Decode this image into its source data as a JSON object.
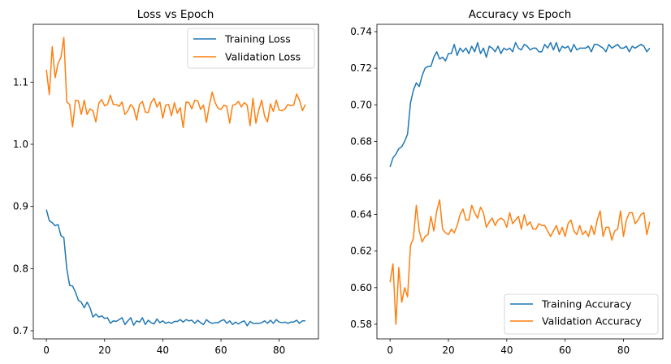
{
  "colors": {
    "training": "#1f77b4",
    "validation": "#ff7f0e"
  },
  "chart_data": [
    {
      "type": "line",
      "title": "Loss vs Epoch",
      "xlabel": "",
      "ylabel": "",
      "xlim": [
        -4.5,
        93.5
      ],
      "ylim": [
        0.687,
        1.193
      ],
      "xticks": [
        0,
        20,
        40,
        60,
        80
      ],
      "yticks": [
        0.7,
        0.8,
        0.9,
        1.0,
        1.1
      ],
      "yticks_labels": [
        "0.7",
        "0.8",
        "0.9",
        "1.0",
        "1.1"
      ],
      "grid": false,
      "legend_position": "upper right",
      "series": [
        {
          "name": "Training Loss",
          "color": "#1f77b4",
          "x_start": 0,
          "values": [
            0.895,
            0.877,
            0.874,
            0.869,
            0.871,
            0.853,
            0.85,
            0.8,
            0.773,
            0.772,
            0.762,
            0.749,
            0.746,
            0.737,
            0.746,
            0.737,
            0.722,
            0.727,
            0.722,
            0.724,
            0.72,
            0.721,
            0.712,
            0.716,
            0.715,
            0.718,
            0.721,
            0.71,
            0.716,
            0.721,
            0.709,
            0.716,
            0.714,
            0.721,
            0.71,
            0.717,
            0.713,
            0.711,
            0.719,
            0.713,
            0.716,
            0.712,
            0.714,
            0.712,
            0.715,
            0.715,
            0.718,
            0.714,
            0.718,
            0.716,
            0.717,
            0.712,
            0.717,
            0.713,
            0.71,
            0.718,
            0.714,
            0.712,
            0.713,
            0.713,
            0.716,
            0.718,
            0.712,
            0.716,
            0.71,
            0.714,
            0.711,
            0.714,
            0.716,
            0.708,
            0.715,
            0.712,
            0.712,
            0.712,
            0.713,
            0.716,
            0.712,
            0.717,
            0.712,
            0.718,
            0.714,
            0.713,
            0.714,
            0.712,
            0.714,
            0.714,
            0.717,
            0.712,
            0.716,
            0.716
          ]
        },
        {
          "name": "Validation Loss",
          "color": "#ff7f0e",
          "x_start": 0,
          "values": [
            1.12,
            1.08,
            1.157,
            1.107,
            1.13,
            1.14,
            1.172,
            1.068,
            1.064,
            1.028,
            1.071,
            1.07,
            1.048,
            1.071,
            1.048,
            1.057,
            1.054,
            1.036,
            1.066,
            1.072,
            1.062,
            1.064,
            1.079,
            1.064,
            1.064,
            1.061,
            1.068,
            1.048,
            1.054,
            1.064,
            1.058,
            1.039,
            1.064,
            1.069,
            1.052,
            1.051,
            1.067,
            1.074,
            1.06,
            1.068,
            1.042,
            1.063,
            1.064,
            1.046,
            1.067,
            1.05,
            1.059,
            1.027,
            1.068,
            1.067,
            1.057,
            1.071,
            1.07,
            1.056,
            1.063,
            1.035,
            1.063,
            1.084,
            1.067,
            1.058,
            1.056,
            1.063,
            1.061,
            1.034,
            1.063,
            1.064,
            1.069,
            1.06,
            1.067,
            1.063,
            1.03,
            1.074,
            1.034,
            1.055,
            1.071,
            1.045,
            1.036,
            1.065,
            1.053,
            1.071,
            1.055,
            1.054,
            1.057,
            1.064,
            1.062,
            1.063,
            1.081,
            1.071,
            1.054,
            1.064
          ]
        }
      ]
    },
    {
      "type": "line",
      "title": "Accuracy vs Epoch",
      "xlabel": "",
      "ylabel": "",
      "xlim": [
        -4.5,
        93.5
      ],
      "ylim": [
        0.572,
        0.744
      ],
      "xticks": [
        0,
        20,
        40,
        60,
        80
      ],
      "yticks": [
        0.58,
        0.6,
        0.62,
        0.64,
        0.66,
        0.68,
        0.7,
        0.72,
        0.74
      ],
      "yticks_labels": [
        "0.58",
        "0.60",
        "0.62",
        "0.64",
        "0.66",
        "0.68",
        "0.70",
        "0.72",
        "0.74"
      ],
      "grid": false,
      "legend_position": "lower right",
      "series": [
        {
          "name": "Training Accuracy",
          "color": "#1f77b4",
          "x_start": 0,
          "values": [
            0.666,
            0.671,
            0.673,
            0.676,
            0.677,
            0.68,
            0.684,
            0.701,
            0.708,
            0.712,
            0.71,
            0.716,
            0.72,
            0.721,
            0.721,
            0.726,
            0.729,
            0.725,
            0.726,
            0.724,
            0.728,
            0.728,
            0.733,
            0.727,
            0.731,
            0.729,
            0.731,
            0.728,
            0.732,
            0.729,
            0.734,
            0.728,
            0.731,
            0.726,
            0.732,
            0.731,
            0.729,
            0.732,
            0.728,
            0.731,
            0.73,
            0.731,
            0.729,
            0.734,
            0.731,
            0.73,
            0.733,
            0.732,
            0.73,
            0.731,
            0.731,
            0.729,
            0.729,
            0.733,
            0.731,
            0.734,
            0.73,
            0.734,
            0.729,
            0.732,
            0.731,
            0.732,
            0.729,
            0.733,
            0.73,
            0.731,
            0.731,
            0.731,
            0.732,
            0.729,
            0.733,
            0.733,
            0.732,
            0.731,
            0.729,
            0.733,
            0.731,
            0.732,
            0.733,
            0.731,
            0.731,
            0.732,
            0.729,
            0.732,
            0.731,
            0.732,
            0.733,
            0.732,
            0.729,
            0.731
          ]
        },
        {
          "name": "Validation Accuracy",
          "color": "#ff7f0e",
          "x_start": 0,
          "values": [
            0.603,
            0.613,
            0.58,
            0.611,
            0.592,
            0.6,
            0.595,
            0.623,
            0.627,
            0.645,
            0.631,
            0.625,
            0.628,
            0.629,
            0.639,
            0.631,
            0.642,
            0.648,
            0.632,
            0.63,
            0.629,
            0.632,
            0.63,
            0.634,
            0.64,
            0.643,
            0.637,
            0.637,
            0.645,
            0.641,
            0.638,
            0.644,
            0.641,
            0.633,
            0.636,
            0.638,
            0.634,
            0.637,
            0.638,
            0.637,
            0.633,
            0.641,
            0.635,
            0.637,
            0.639,
            0.632,
            0.64,
            0.634,
            0.636,
            0.632,
            0.632,
            0.635,
            0.634,
            0.634,
            0.631,
            0.628,
            0.631,
            0.634,
            0.629,
            0.633,
            0.628,
            0.635,
            0.637,
            0.631,
            0.629,
            0.634,
            0.629,
            0.631,
            0.628,
            0.634,
            0.629,
            0.637,
            0.642,
            0.628,
            0.633,
            0.633,
            0.626,
            0.631,
            0.632,
            0.642,
            0.628,
            0.637,
            0.641,
            0.641,
            0.635,
            0.637,
            0.64,
            0.641,
            0.629,
            0.636
          ]
        }
      ]
    }
  ]
}
